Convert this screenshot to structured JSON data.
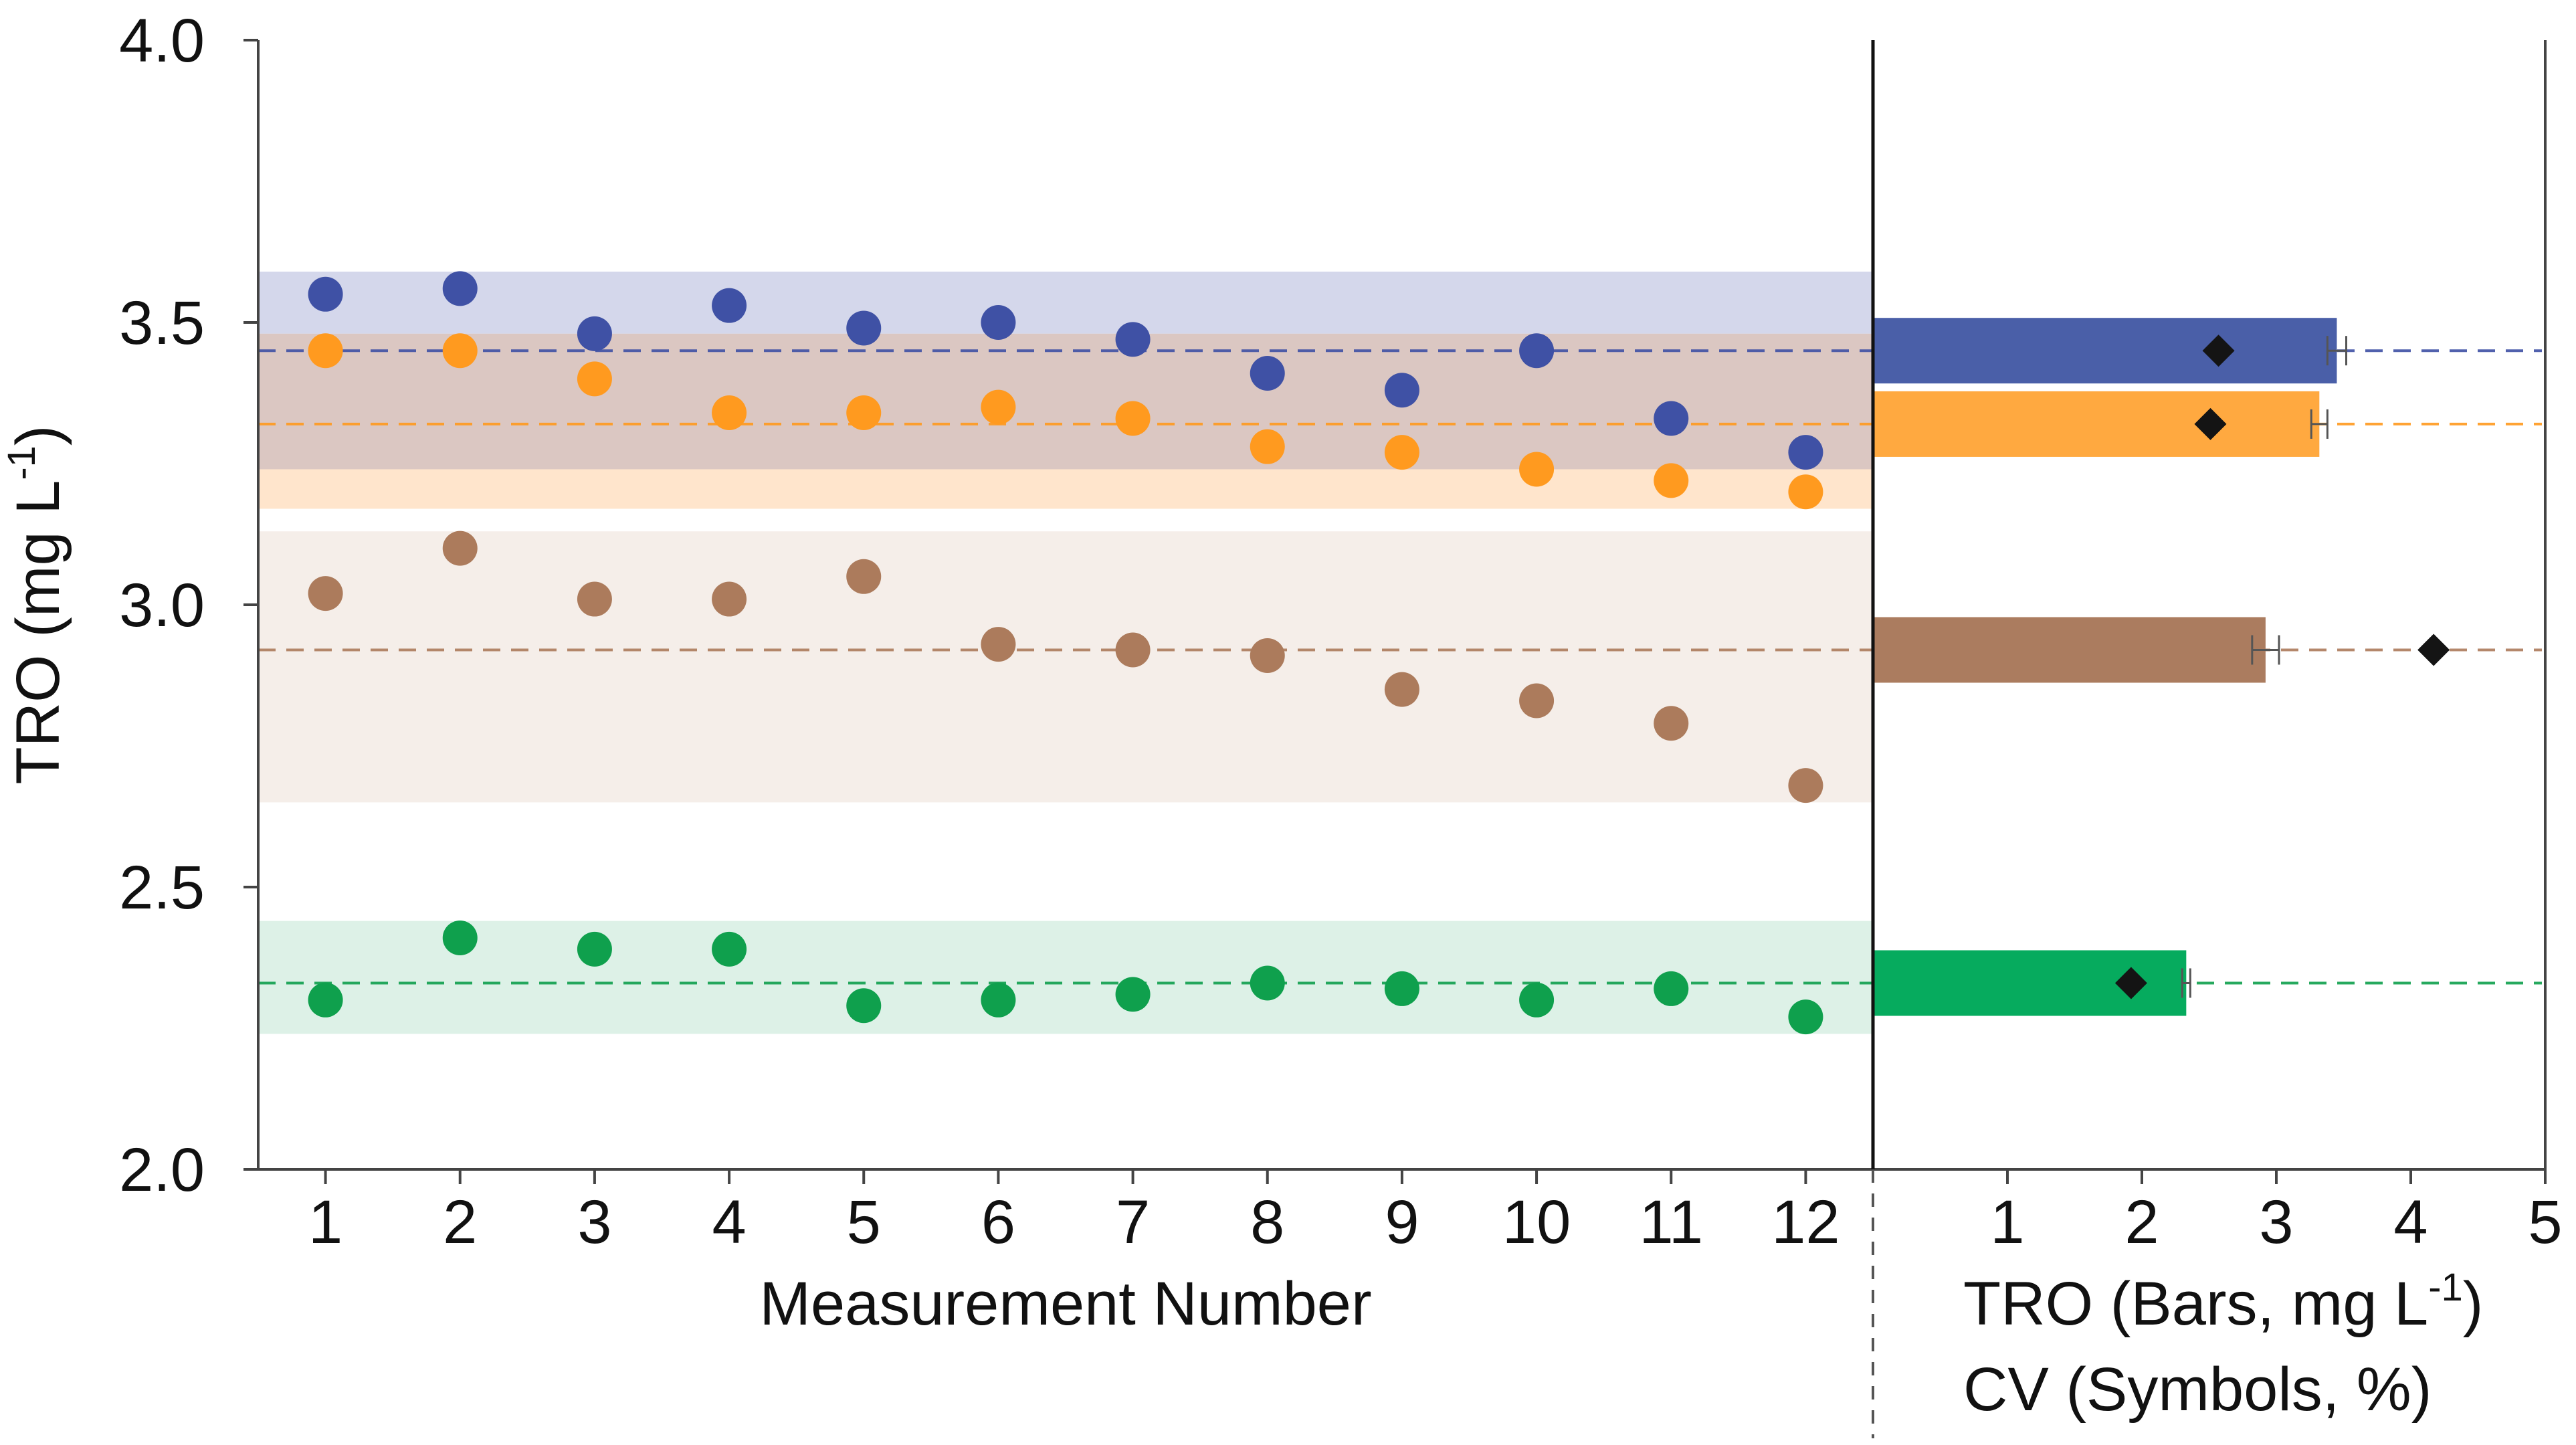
{
  "chart_data": [
    {
      "type": "scatter",
      "ylabel": "TRO (mg L",
      "ylabel_sup": "-1",
      "ylabel_suffix": ")",
      "xlabel": "Measurement Number",
      "ylim": [
        2.0,
        4.0
      ],
      "xlim": [
        0.5,
        12.5
      ],
      "yticks": [
        "2.0",
        "2.5",
        "3.0",
        "3.5",
        "4.0"
      ],
      "ytick_values": [
        2.0,
        2.5,
        3.0,
        3.5,
        4.0
      ],
      "x": [
        1,
        2,
        3,
        4,
        5,
        6,
        7,
        8,
        9,
        10,
        11,
        12
      ],
      "xtick_labels": [
        "1",
        "2",
        "3",
        "4",
        "5",
        "6",
        "7",
        "8",
        "9",
        "10",
        "11",
        "12"
      ],
      "series": [
        {
          "name": "blue",
          "color": "#3F51A5",
          "band_color": "#D4D7EB",
          "mean": 3.45,
          "band": [
            3.24,
            3.59
          ],
          "values": [
            3.55,
            3.56,
            3.48,
            3.53,
            3.49,
            3.5,
            3.47,
            3.41,
            3.38,
            3.45,
            3.33,
            3.27
          ]
        },
        {
          "name": "orange",
          "color": "#FF9A1F",
          "band_color": "#FFE5CC",
          "mean": 3.32,
          "band": [
            3.17,
            3.48
          ],
          "values": [
            3.45,
            3.45,
            3.4,
            3.34,
            3.34,
            3.35,
            3.33,
            3.28,
            3.27,
            3.24,
            3.22,
            3.2
          ]
        },
        {
          "name": "brown",
          "color": "#AC7B5C",
          "band_color": "#F5EEE9",
          "mean": 2.92,
          "band": [
            2.65,
            3.13
          ],
          "values": [
            3.02,
            3.1,
            3.01,
            3.01,
            3.05,
            2.93,
            2.92,
            2.91,
            2.85,
            2.83,
            2.79,
            2.68
          ]
        },
        {
          "name": "green",
          "color": "#0FA04D",
          "band_color": "#DDF1E7",
          "mean": 2.33,
          "band": [
            2.24,
            2.44
          ],
          "values": [
            2.3,
            2.41,
            2.39,
            2.39,
            2.29,
            2.3,
            2.31,
            2.33,
            2.32,
            2.3,
            2.32,
            2.27
          ]
        }
      ],
      "overlap_band_color": "#DBC7C2"
    },
    {
      "type": "bar",
      "orientation": "horizontal",
      "xlim": [
        0,
        5
      ],
      "xticks": [
        "1",
        "2",
        "3",
        "4",
        "5"
      ],
      "xtick_values": [
        1,
        2,
        3,
        4,
        5
      ],
      "xlabel_line1": "TRO (Bars, mg L",
      "xlabel_line1_sup": "-1",
      "xlabel_line1_suffix": ")",
      "xlabel_line2": "CV (Symbols, %)",
      "series": [
        {
          "name": "blue",
          "color": "#4A5FA8",
          "tro_mean": 3.45,
          "error": 0.07,
          "cv": 2.57
        },
        {
          "name": "orange",
          "color": "#FFA940",
          "tro_mean": 3.32,
          "error": 0.06,
          "cv": 2.51
        },
        {
          "name": "brown",
          "color": "#AB7C5F",
          "tro_mean": 2.92,
          "error": 0.1,
          "cv": 4.17
        },
        {
          "name": "green",
          "color": "#06AB5E",
          "tro_mean": 2.33,
          "error": 0.03,
          "cv": 1.92
        }
      ]
    }
  ]
}
